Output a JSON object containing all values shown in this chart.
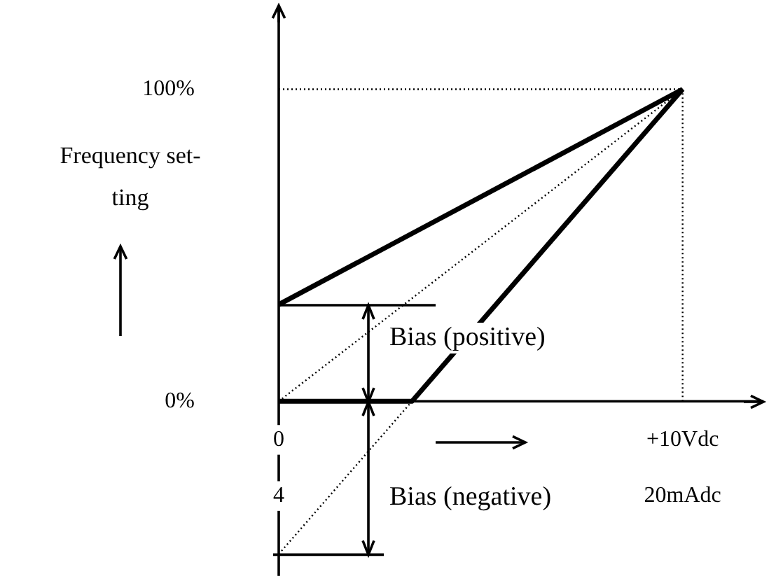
{
  "chart_data": {
    "type": "line",
    "ylabel": "Frequency set-\nting",
    "xlim": [
      0,
      12
    ],
    "xticks": [
      0,
      {
        "value": 10,
        "label": "+10Vdc"
      }
    ],
    "x2lim": [
      4,
      23.2
    ],
    "x2ticks": [
      4,
      {
        "value": 20,
        "label": "20mAdc"
      }
    ],
    "ylim": [
      -56,
      127
    ],
    "yticks": [
      {
        "value": 0,
        "label": "0%"
      },
      {
        "value": 100,
        "label": "100%"
      }
    ],
    "marker": "none",
    "series": [
      {
        "color": "#000000",
        "line_style": "solid",
        "x": [
          0,
          10
        ],
        "values": [
          31,
          100
        ]
      },
      {
        "color": "#000000",
        "line_style": "dotted",
        "x": [
          0,
          10
        ],
        "values": [
          0,
          100
        ]
      },
      {
        "color": "#000000",
        "line_style": "solid",
        "x": [
          0,
          3.3,
          10
        ],
        "values": [
          0,
          0,
          100
        ]
      },
      {
        "color": "#000000",
        "line_style": "dotted",
        "x": [
          0,
          3.3
        ],
        "values": [
          -49,
          0
        ]
      }
    ],
    "ref_lines": [
      {
        "axis": "x",
        "value": 10,
        "line_style": "dotted",
        "color": "#000000"
      },
      {
        "axis": "y",
        "value": 100,
        "line_style": "dotted",
        "color": "#000000"
      }
    ],
    "annotations": [
      {
        "text": "Bias (positive)",
        "x": 0,
        "y": 31
      },
      "Bias (negative)"
    ]
  }
}
